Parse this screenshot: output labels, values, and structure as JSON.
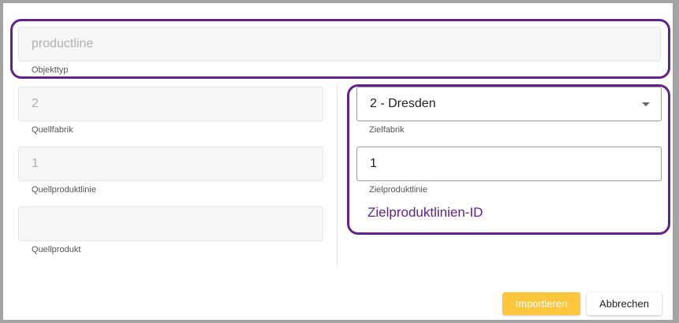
{
  "form": {
    "object_type": {
      "value": "productline",
      "label": "Objekttyp"
    },
    "source_factory": {
      "value": "2",
      "label": "Quellfabrik"
    },
    "source_productline": {
      "value": "1",
      "label": "Quellproduktlinie"
    },
    "source_product": {
      "value": "",
      "label": "Quellprodukt"
    },
    "target_factory": {
      "value": "2 - Dresden",
      "label": "Zielfabrik"
    },
    "target_productline": {
      "value": "1",
      "label": "Zielproduktlinie"
    },
    "target_productline_id_link": "Zielproduktlinien-ID"
  },
  "buttons": {
    "import": "Importieren",
    "cancel": "Abbrechen"
  },
  "colors": {
    "highlight": "#62228a",
    "primary_button": "#fec63c"
  }
}
